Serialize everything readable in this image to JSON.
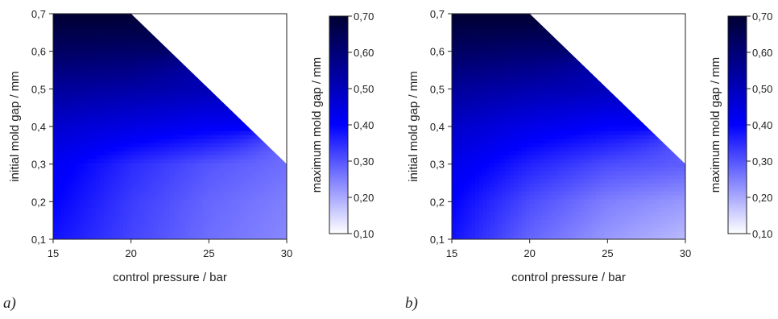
{
  "chart_data": [
    {
      "type": "heatmap",
      "panel_label": "a)",
      "xlabel": "control pressure / bar",
      "ylabel": "initial mold gap / mm",
      "colorbar_label": "maximum mold gap / mm",
      "xlim": [
        15,
        30
      ],
      "ylim": [
        0.1,
        0.7
      ],
      "x_ticks": [
        "15",
        "20",
        "25",
        "30"
      ],
      "y_ticks": [
        "0,1",
        "0,2",
        "0,3",
        "0,4",
        "0,5",
        "0,6",
        "0,7"
      ],
      "colorbar_range": [
        0.1,
        0.7
      ],
      "colorbar_ticks": [
        "0,10",
        "0,20",
        "0,30",
        "0,40",
        "0,50",
        "0,60",
        "0,70"
      ],
      "colorscale": [
        "#ffffff",
        "#0000ff",
        "#000033"
      ],
      "valid_region_boundary": [
        [
          20,
          0.7
        ],
        [
          30,
          0.3
        ]
      ],
      "grid": {
        "x": [
          15,
          20,
          25,
          30
        ],
        "y": [
          0.1,
          0.2,
          0.3,
          0.4,
          0.5,
          0.6,
          0.7
        ],
        "z": [
          [
            0.38,
            0.32,
            0.27,
            0.24
          ],
          [
            0.4,
            0.33,
            0.28,
            0.25
          ],
          [
            0.42,
            0.35,
            0.3,
            0.27
          ],
          [
            0.47,
            0.44,
            0.41,
            null
          ],
          [
            0.55,
            0.53,
            0.51,
            null
          ],
          [
            0.63,
            0.62,
            null,
            null
          ],
          [
            0.7,
            0.7,
            null,
            null
          ]
        ]
      }
    },
    {
      "type": "heatmap",
      "panel_label": "b)",
      "xlabel": "control pressure / bar",
      "ylabel": "initial mold gap / mm",
      "colorbar_label": "maximum mold gap / mm",
      "xlim": [
        15,
        30
      ],
      "ylim": [
        0.1,
        0.7
      ],
      "x_ticks": [
        "15",
        "20",
        "25",
        "30"
      ],
      "y_ticks": [
        "0,1",
        "0,2",
        "0,3",
        "0,4",
        "0,5",
        "0,6",
        "0,7"
      ],
      "colorbar_range": [
        0.1,
        0.7
      ],
      "colorbar_ticks": [
        "0,10",
        "0,20",
        "0,30",
        "0,40",
        "0,50",
        "0,60",
        "0,70"
      ],
      "colorscale": [
        "#ffffff",
        "#0000ff",
        "#000033"
      ],
      "valid_region_boundary": [
        [
          20,
          0.7
        ],
        [
          30,
          0.3
        ]
      ],
      "grid": {
        "x": [
          15,
          20,
          25,
          30
        ],
        "y": [
          0.1,
          0.2,
          0.3,
          0.4,
          0.5,
          0.6,
          0.7
        ],
        "z": [
          [
            0.38,
            0.28,
            0.22,
            0.18
          ],
          [
            0.4,
            0.31,
            0.25,
            0.22
          ],
          [
            0.43,
            0.36,
            0.31,
            0.29
          ],
          [
            0.48,
            0.43,
            0.4,
            null
          ],
          [
            0.55,
            0.52,
            0.5,
            null
          ],
          [
            0.63,
            0.61,
            null,
            null
          ],
          [
            0.7,
            0.7,
            null,
            null
          ]
        ]
      }
    }
  ]
}
